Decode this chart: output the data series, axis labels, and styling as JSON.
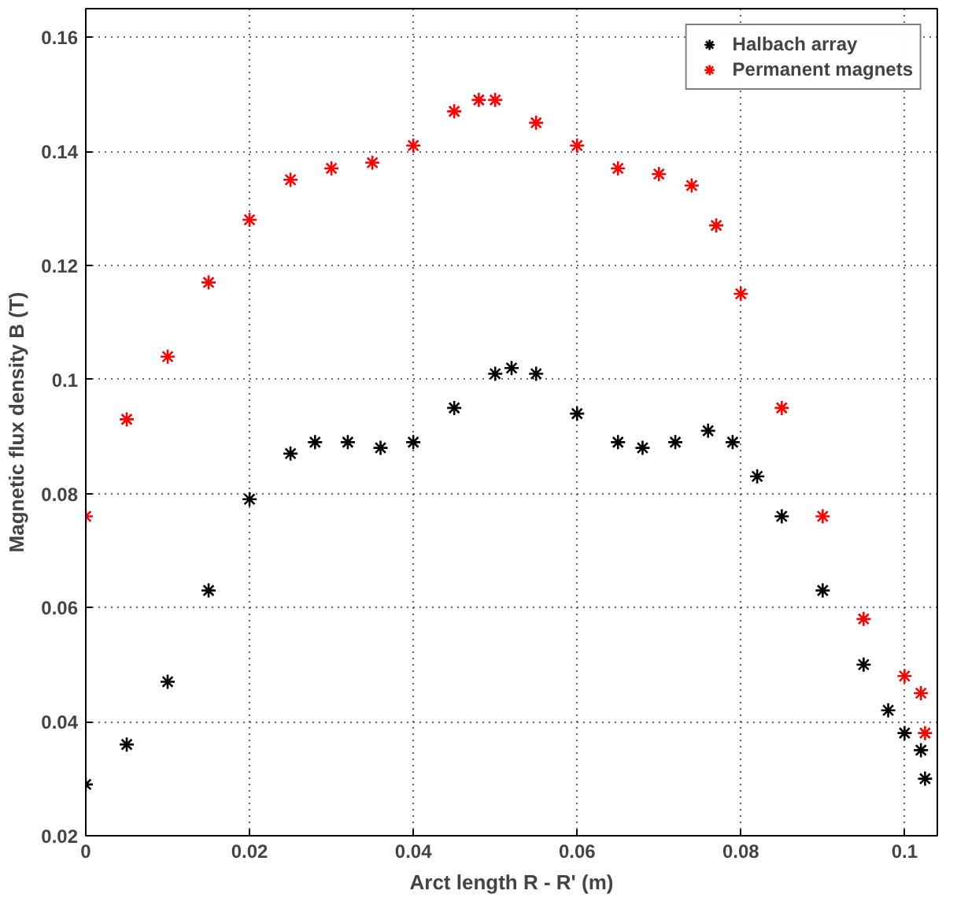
{
  "chart_data": {
    "type": "scatter",
    "xlabel": "Arct length R - R' (m)",
    "ylabel": "Magnetic flux density B (T)",
    "xlim": [
      0,
      0.104
    ],
    "ylim": [
      0.02,
      0.165
    ],
    "xticks": [
      0,
      0.02,
      0.04,
      0.06,
      0.08,
      0.1
    ],
    "yticks": [
      0.02,
      0.04,
      0.06,
      0.08,
      0.1,
      0.12,
      0.14,
      0.16
    ],
    "grid": true,
    "legend": "top right",
    "marker": "cross",
    "series": [
      {
        "name": "Halbach array",
        "color": "#000000",
        "x": [
          0,
          0.005,
          0.01,
          0.015,
          0.02,
          0.025,
          0.028,
          0.032,
          0.036,
          0.04,
          0.045,
          0.05,
          0.052,
          0.055,
          0.06,
          0.065,
          0.068,
          0.072,
          0.076,
          0.079,
          0.082,
          0.085,
          0.09,
          0.095,
          0.098,
          0.1,
          0.102,
          0.1025
        ],
        "values": [
          0.029,
          0.036,
          0.047,
          0.063,
          0.079,
          0.087,
          0.089,
          0.089,
          0.088,
          0.089,
          0.095,
          0.101,
          0.102,
          0.101,
          0.094,
          0.089,
          0.088,
          0.089,
          0.091,
          0.089,
          0.083,
          0.076,
          0.063,
          0.05,
          0.042,
          0.038,
          0.035,
          0.03
        ]
      },
      {
        "name": "Permanent magnets",
        "color": "#ff0000",
        "x": [
          0,
          0.005,
          0.01,
          0.015,
          0.02,
          0.025,
          0.03,
          0.035,
          0.04,
          0.045,
          0.048,
          0.05,
          0.055,
          0.06,
          0.065,
          0.07,
          0.074,
          0.077,
          0.08,
          0.085,
          0.09,
          0.095,
          0.1,
          0.102,
          0.1025
        ],
        "values": [
          0.076,
          0.093,
          0.104,
          0.117,
          0.128,
          0.135,
          0.137,
          0.138,
          0.141,
          0.147,
          0.149,
          0.149,
          0.145,
          0.141,
          0.137,
          0.136,
          0.134,
          0.127,
          0.115,
          0.095,
          0.076,
          0.058,
          0.048,
          0.045,
          0.038
        ]
      }
    ]
  }
}
